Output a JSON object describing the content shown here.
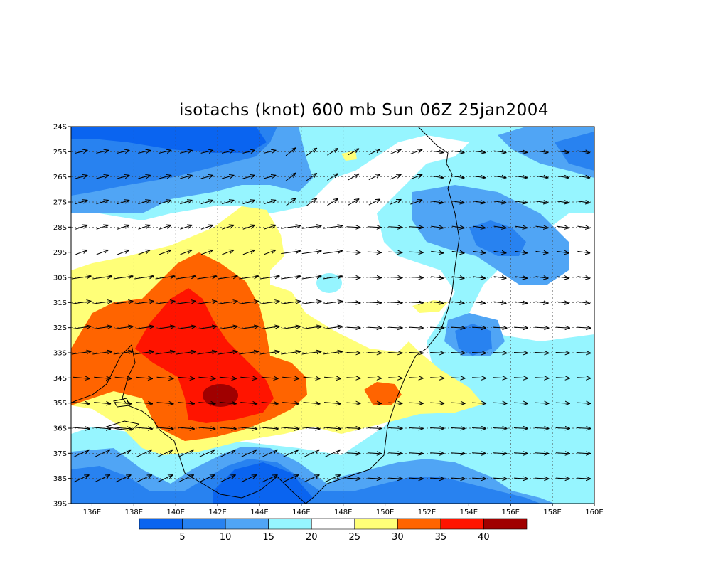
{
  "title": "isotachs (knot) 600 mb Sun 06Z 25jan2004",
  "lat_labels": [
    "24S",
    "25S",
    "26S",
    "27S",
    "28S",
    "29S",
    "30S",
    "31S",
    "32S",
    "33S",
    "34S",
    "35S",
    "36S",
    "37S",
    "38S",
    "39S"
  ],
  "lon_labels": [
    "136E",
    "138E",
    "140E",
    "142E",
    "144E",
    "146E",
    "148E",
    "150E",
    "152E",
    "154E",
    "156E",
    "158E",
    "160E"
  ],
  "lon_range": [
    135,
    160
  ],
  "lat_range": [
    -24,
    -39
  ],
  "colorbar": {
    "labels": [
      "5",
      "10",
      "15",
      "20",
      "25",
      "30",
      "35",
      "40"
    ],
    "colors": [
      "#0a64f0",
      "#2882f0",
      "#50a5f5",
      "#96f5ff",
      "#ffffff",
      "#ffff78",
      "#ff6400",
      "#ff1400",
      "#a00000"
    ]
  }
}
